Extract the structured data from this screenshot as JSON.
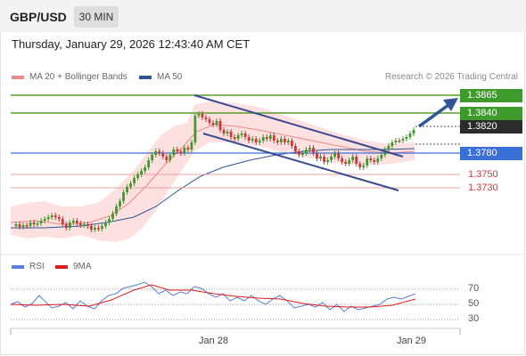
{
  "header": {
    "symbol": "GBP/USD",
    "timeframe": "30 MIN"
  },
  "datetime": "Thursday, January 29, 2026 12:43:40 AM CET",
  "legend": {
    "items": [
      {
        "label": "MA 20 + Bollinger Bands",
        "color": "#f08a8a"
      },
      {
        "label": "MA 50",
        "color": "#2f5596"
      }
    ],
    "credit": "Research © 2026 Trading Central"
  },
  "price_levels": [
    {
      "value": "1.3865",
      "style": "green"
    },
    {
      "value": "1.3840",
      "style": "green"
    },
    {
      "value": "1.3820",
      "style": "dark"
    },
    {
      "value": "1.3780",
      "style": "blue"
    },
    {
      "value": "1.3750",
      "style": "red-text"
    },
    {
      "value": "1.3730",
      "style": "red-text"
    }
  ],
  "rsi": {
    "legend": [
      {
        "label": "RSI",
        "color": "#5a7fd6"
      },
      {
        "label": "9MA",
        "color": "#e01b1b"
      }
    ],
    "levels": [
      "70",
      "50",
      "30"
    ]
  },
  "x_axis": {
    "labels": [
      "Jan 28",
      "Jan 29"
    ]
  },
  "colors": {
    "up": "#3f9a2c",
    "down": "#c73a3a",
    "green_line": "#5aa02c",
    "blue_line": "#3a6fd8",
    "red_line": "#e07070",
    "channel": "#3b4a8f",
    "arrow": "#2f5596",
    "band_fill": "#fde0e0"
  }
}
